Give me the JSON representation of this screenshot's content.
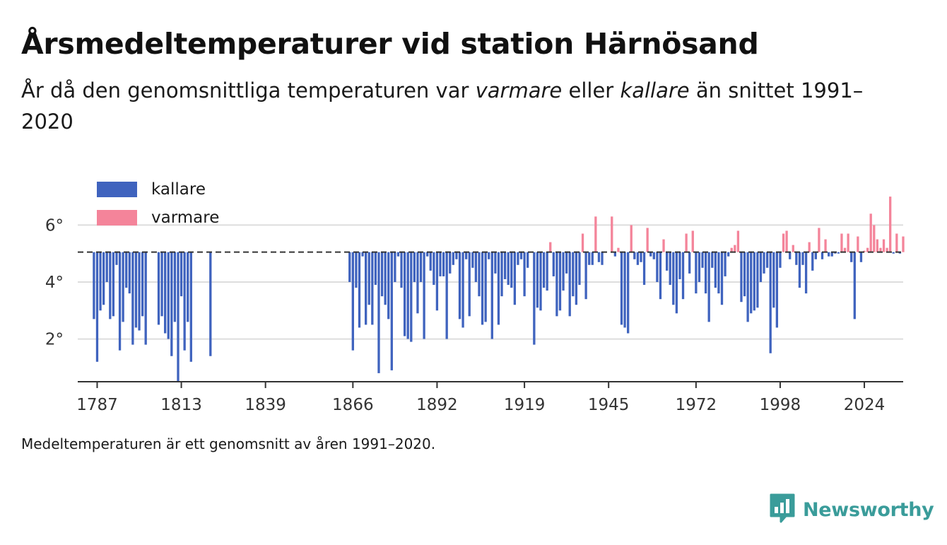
{
  "header": {
    "title": "Årsmedeltemperaturer vid station Härnösand",
    "subtitle_prefix": "År då den genomsnittliga temperaturen var ",
    "subtitle_warm": "varmare",
    "subtitle_mid": " eller ",
    "subtitle_cold": "kallare",
    "subtitle_suffix": " än snittet 1991–2020"
  },
  "footnote": "Medeltemperaturen är ett genomsnitt av åren 1991–2020.",
  "brand": {
    "name": "Newsworthy",
    "icon": "newsworthy-logo-icon",
    "color": "#3a9c9a"
  },
  "colors": {
    "kallare": "#3f63be",
    "varmare": "#f4849a",
    "baseline": "#333333",
    "grid": "#dddddd"
  },
  "chart_data": {
    "type": "bar",
    "baseline": 5.05,
    "ylim": [
      0.5,
      7.4
    ],
    "yticks": [
      {
        "value": 2,
        "label": "2°"
      },
      {
        "value": 4,
        "label": "4°"
      },
      {
        "value": 6,
        "label": "6°"
      }
    ],
    "xlim": [
      1781,
      2036
    ],
    "xticks": [
      1787,
      1813,
      1839,
      1866,
      1892,
      1919,
      1945,
      1972,
      1998,
      2024
    ],
    "legend_position": "top-left",
    "grid": true,
    "series": [
      {
        "name": "kallare",
        "color": "#3f63be"
      },
      {
        "name": "varmare",
        "color": "#f4849a"
      }
    ],
    "start_year": 1786,
    "values": [
      2.7,
      1.2,
      3.0,
      3.2,
      4.0,
      2.7,
      2.8,
      4.6,
      1.6,
      2.6,
      3.8,
      3.6,
      1.8,
      2.4,
      2.3,
      2.8,
      1.8,
      null,
      null,
      null,
      2.5,
      2.8,
      2.2,
      2.0,
      1.4,
      2.6,
      0.5,
      3.5,
      1.6,
      2.6,
      1.2,
      null,
      null,
      null,
      null,
      null,
      1.4,
      null,
      null,
      null,
      null,
      null,
      null,
      null,
      null,
      null,
      null,
      null,
      null,
      null,
      null,
      null,
      null,
      null,
      null,
      null,
      null,
      null,
      null,
      null,
      null,
      null,
      null,
      null,
      null,
      null,
      null,
      null,
      null,
      null,
      null,
      null,
      null,
      null,
      null,
      null,
      null,
      null,
      null,
      4.0,
      1.6,
      3.8,
      2.4,
      4.9,
      2.5,
      3.2,
      2.5,
      3.9,
      0.8,
      3.5,
      3.2,
      2.7,
      0.9,
      4.0,
      4.9,
      3.8,
      2.1,
      2.0,
      1.9,
      4.0,
      2.9,
      4.0,
      2.0,
      4.9,
      4.4,
      3.9,
      3.0,
      4.2,
      4.2,
      2.0,
      4.3,
      4.6,
      4.8,
      2.7,
      2.4,
      4.8,
      2.8,
      4.5,
      4.0,
      3.5,
      2.5,
      2.6,
      4.8,
      2.0,
      4.3,
      2.5,
      3.5,
      4.1,
      3.9,
      3.8,
      3.2,
      4.6,
      4.8,
      3.5,
      4.5,
      null,
      1.8,
      3.1,
      3.0,
      3.8,
      3.7,
      5.4,
      4.2,
      2.8,
      3.0,
      3.7,
      4.3,
      2.8,
      3.5,
      3.2,
      3.9,
      5.7,
      3.4,
      4.6,
      4.6,
      6.3,
      4.7,
      4.6,
      null,
      null,
      6.3,
      4.9,
      5.2,
      2.5,
      2.4,
      2.2,
      6.0,
      4.8,
      4.6,
      4.7,
      3.9,
      5.9,
      4.9,
      4.8,
      4.0,
      3.4,
      5.5,
      4.4,
      3.9,
      3.2,
      2.9,
      4.1,
      3.4,
      5.7,
      4.3,
      5.8,
      3.6,
      4.0,
      4.5,
      3.6,
      2.6,
      4.5,
      3.8,
      3.6,
      3.2,
      4.2,
      4.9,
      5.2,
      5.3,
      5.8,
      3.3,
      3.5,
      2.6,
      2.9,
      3.0,
      3.1,
      4.0,
      4.3,
      4.5,
      1.5,
      3.1,
      2.4,
      4.5,
      5.7,
      5.8,
      4.8,
      5.3,
      4.6,
      3.8,
      4.6,
      3.6,
      5.4,
      4.4,
      4.8,
      5.9,
      4.8,
      5.5,
      4.9,
      4.9,
      5.0,
      5.0,
      5.7,
      5.2,
      5.7,
      4.7,
      2.7,
      5.6,
      4.7,
      5.1,
      5.2,
      6.4,
      6.0,
      5.5,
      5.2,
      5.5,
      5.2,
      7.0,
      5.0,
      5.7,
      5.0,
      5.6
    ]
  }
}
